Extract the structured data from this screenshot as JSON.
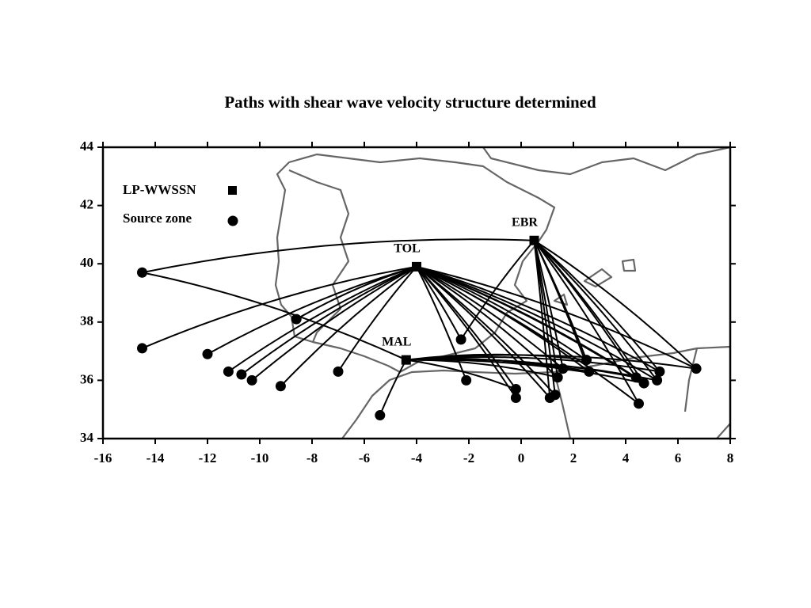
{
  "chart_data": {
    "type": "paths",
    "title": "Paths with shear wave velocity structure determined",
    "xlim": [
      -16,
      8
    ],
    "ylim": [
      34,
      44
    ],
    "xticks": [
      -16,
      -14,
      -12,
      -10,
      -8,
      -6,
      -4,
      -2,
      0,
      2,
      4,
      6,
      8
    ],
    "yticks": [
      34,
      36,
      38,
      40,
      42,
      44
    ],
    "legend": {
      "station": "LP-WWSSN",
      "source": "Source zone"
    },
    "color": "#000000",
    "sources": [
      {
        "lon": -14.5,
        "lat": 39.7
      },
      {
        "lon": -14.5,
        "lat": 37.1
      },
      {
        "lon": -12.0,
        "lat": 36.9
      },
      {
        "lon": -11.2,
        "lat": 36.3
      },
      {
        "lon": -10.7,
        "lat": 36.2
      },
      {
        "lon": -10.3,
        "lat": 36.0
      },
      {
        "lon": -9.2,
        "lat": 35.8
      },
      {
        "lon": -8.6,
        "lat": 38.1
      },
      {
        "lon": -7.0,
        "lat": 36.3
      },
      {
        "lon": -5.4,
        "lat": 34.8
      },
      {
        "lon": -2.3,
        "lat": 37.4
      },
      {
        "lon": -2.1,
        "lat": 36.0
      },
      {
        "lon": -0.2,
        "lat": 35.7
      },
      {
        "lon": -0.2,
        "lat": 35.4
      },
      {
        "lon": 1.1,
        "lat": 35.4
      },
      {
        "lon": 1.3,
        "lat": 35.5
      },
      {
        "lon": 1.4,
        "lat": 36.1
      },
      {
        "lon": 1.6,
        "lat": 36.4
      },
      {
        "lon": 2.6,
        "lat": 36.3
      },
      {
        "lon": 2.5,
        "lat": 36.7
      },
      {
        "lon": 4.4,
        "lat": 36.1
      },
      {
        "lon": 4.7,
        "lat": 35.9
      },
      {
        "lon": 5.2,
        "lat": 36.0
      },
      {
        "lon": 5.3,
        "lat": 36.3
      },
      {
        "lon": 4.5,
        "lat": 35.2
      },
      {
        "lon": 6.7,
        "lat": 36.4
      }
    ],
    "stations": [
      {
        "name": "EBR",
        "lon": 0.5,
        "lat": 40.8,
        "paths": [
          0,
          10,
          14,
          15,
          16,
          17,
          18,
          19,
          20,
          21,
          22,
          23,
          24,
          25
        ]
      },
      {
        "name": "TOL",
        "lon": -4.0,
        "lat": 39.9,
        "paths": [
          1,
          2,
          3,
          4,
          5,
          6,
          7,
          8,
          10,
          11,
          12,
          13,
          14,
          15,
          16,
          17,
          18,
          19,
          20,
          21,
          22,
          23,
          24,
          25
        ]
      },
      {
        "name": "MAL",
        "lon": -4.4,
        "lat": 36.7,
        "paths": [
          0,
          9,
          12,
          16,
          17,
          18,
          19,
          20,
          21,
          22,
          23,
          25
        ]
      }
    ]
  }
}
